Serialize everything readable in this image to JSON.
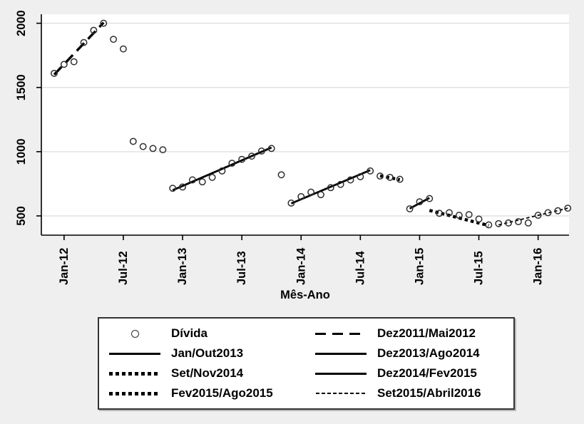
{
  "figure": {
    "background_color": "#efefef",
    "plot_background_color": "#ffffff",
    "grid_color": "#e2e2e2",
    "axis_color": "#000000",
    "marker_color": "#2e2e2e",
    "fit_line_color": "#000000"
  },
  "chart_data": {
    "type": "scatter",
    "title": "",
    "xlabel": "Mês-Ano",
    "ylabel": "",
    "x_unit": "month",
    "x_start": "Dez-11",
    "x_end": "Abr-16",
    "x_tick_labels": [
      "Jan-12",
      "Jul-12",
      "Jan-13",
      "Jul-13",
      "Jan-14",
      "Jul-14",
      "Jan-15",
      "Jul-15",
      "Jan-16"
    ],
    "x_tick_month_indices": [
      1,
      7,
      13,
      19,
      25,
      31,
      37,
      43,
      49
    ],
    "y_ticks": [
      500,
      1000,
      1500,
      2000
    ],
    "ylim": [
      350,
      2070
    ],
    "grid": true,
    "legend_position": "bottom",
    "series": [
      {
        "name": "Dívida",
        "marker": "hollow-circle",
        "months": [
          "Dez-11",
          "Jan-12",
          "Fev-12",
          "Mar-12",
          "Abr-12",
          "Mai-12",
          "Jun-12",
          "Jul-12",
          "Ago-12",
          "Set-12",
          "Out-12",
          "Nov-12",
          "Dez-12",
          "Jan-13",
          "Fev-13",
          "Mar-13",
          "Abr-13",
          "Mai-13",
          "Jun-13",
          "Jul-13",
          "Ago-13",
          "Set-13",
          "Out-13",
          "Nov-13",
          "Dez-13",
          "Jan-14",
          "Fev-14",
          "Mar-14",
          "Abr-14",
          "Mai-14",
          "Jun-14",
          "Jul-14",
          "Ago-14",
          "Set-14",
          "Out-14",
          "Nov-14",
          "Dez-14",
          "Jan-15",
          "Fev-15",
          "Mar-15",
          "Abr-15",
          "Mai-15",
          "Jun-15",
          "Jul-15",
          "Ago-15",
          "Set-15",
          "Out-15",
          "Nov-15",
          "Dez-15",
          "Jan-16",
          "Fev-16",
          "Mar-16",
          "Abr-16"
        ],
        "values": [
          1610,
          1680,
          1700,
          1850,
          1945,
          2000,
          1875,
          1800,
          1080,
          1040,
          1025,
          1015,
          715,
          725,
          780,
          765,
          800,
          850,
          910,
          940,
          965,
          1005,
          1025,
          820,
          600,
          650,
          685,
          665,
          720,
          745,
          780,
          805,
          850,
          810,
          800,
          785,
          555,
          610,
          635,
          520,
          525,
          505,
          510,
          475,
          430,
          440,
          445,
          455,
          445,
          505,
          525,
          540,
          560
        ]
      }
    ],
    "fits": [
      {
        "name": "Dez2011/Mai2012",
        "from_index": 0,
        "to_index": 5,
        "from_value": 1600,
        "to_value": 2005,
        "style": "longdash"
      },
      {
        "name": "Jan/Out2013",
        "from_index": 12,
        "to_index": 22,
        "from_value": 700,
        "to_value": 1032,
        "style": "solid"
      },
      {
        "name": "Dez2013/Ago2014",
        "from_index": 24,
        "to_index": 32,
        "from_value": 597,
        "to_value": 856,
        "style": "solid"
      },
      {
        "name": "Set/Nov2014",
        "from_index": 33,
        "to_index": 35,
        "from_value": 812,
        "to_value": 782,
        "style": "thickdot"
      },
      {
        "name": "Dez2014/Fev2015",
        "from_index": 36,
        "to_index": 38,
        "from_value": 557,
        "to_value": 640,
        "style": "solid"
      },
      {
        "name": "Fev2015/Ago2015",
        "from_index": 38,
        "to_index": 44,
        "from_value": 543,
        "to_value": 425,
        "style": "thickdot"
      },
      {
        "name": "Set2015/Abril2016",
        "from_index": 45,
        "to_index": 52,
        "from_value": 430,
        "to_value": 560,
        "style": "finedash"
      }
    ]
  },
  "legend": {
    "entries": [
      {
        "label": "Dívida",
        "sample": "marker"
      },
      {
        "label": "Dez2011/Mai2012",
        "sample": "longdash"
      },
      {
        "label": "Jan/Out2013",
        "sample": "solid"
      },
      {
        "label": "Dez2013/Ago2014",
        "sample": "solid"
      },
      {
        "label": "Set/Nov2014",
        "sample": "thickdot"
      },
      {
        "label": "Dez2014/Fev2015",
        "sample": "solid"
      },
      {
        "label": "Fev2015/Ago2015",
        "sample": "thickdot"
      },
      {
        "label": "Set2015/Abril2016",
        "sample": "finedash"
      }
    ]
  }
}
